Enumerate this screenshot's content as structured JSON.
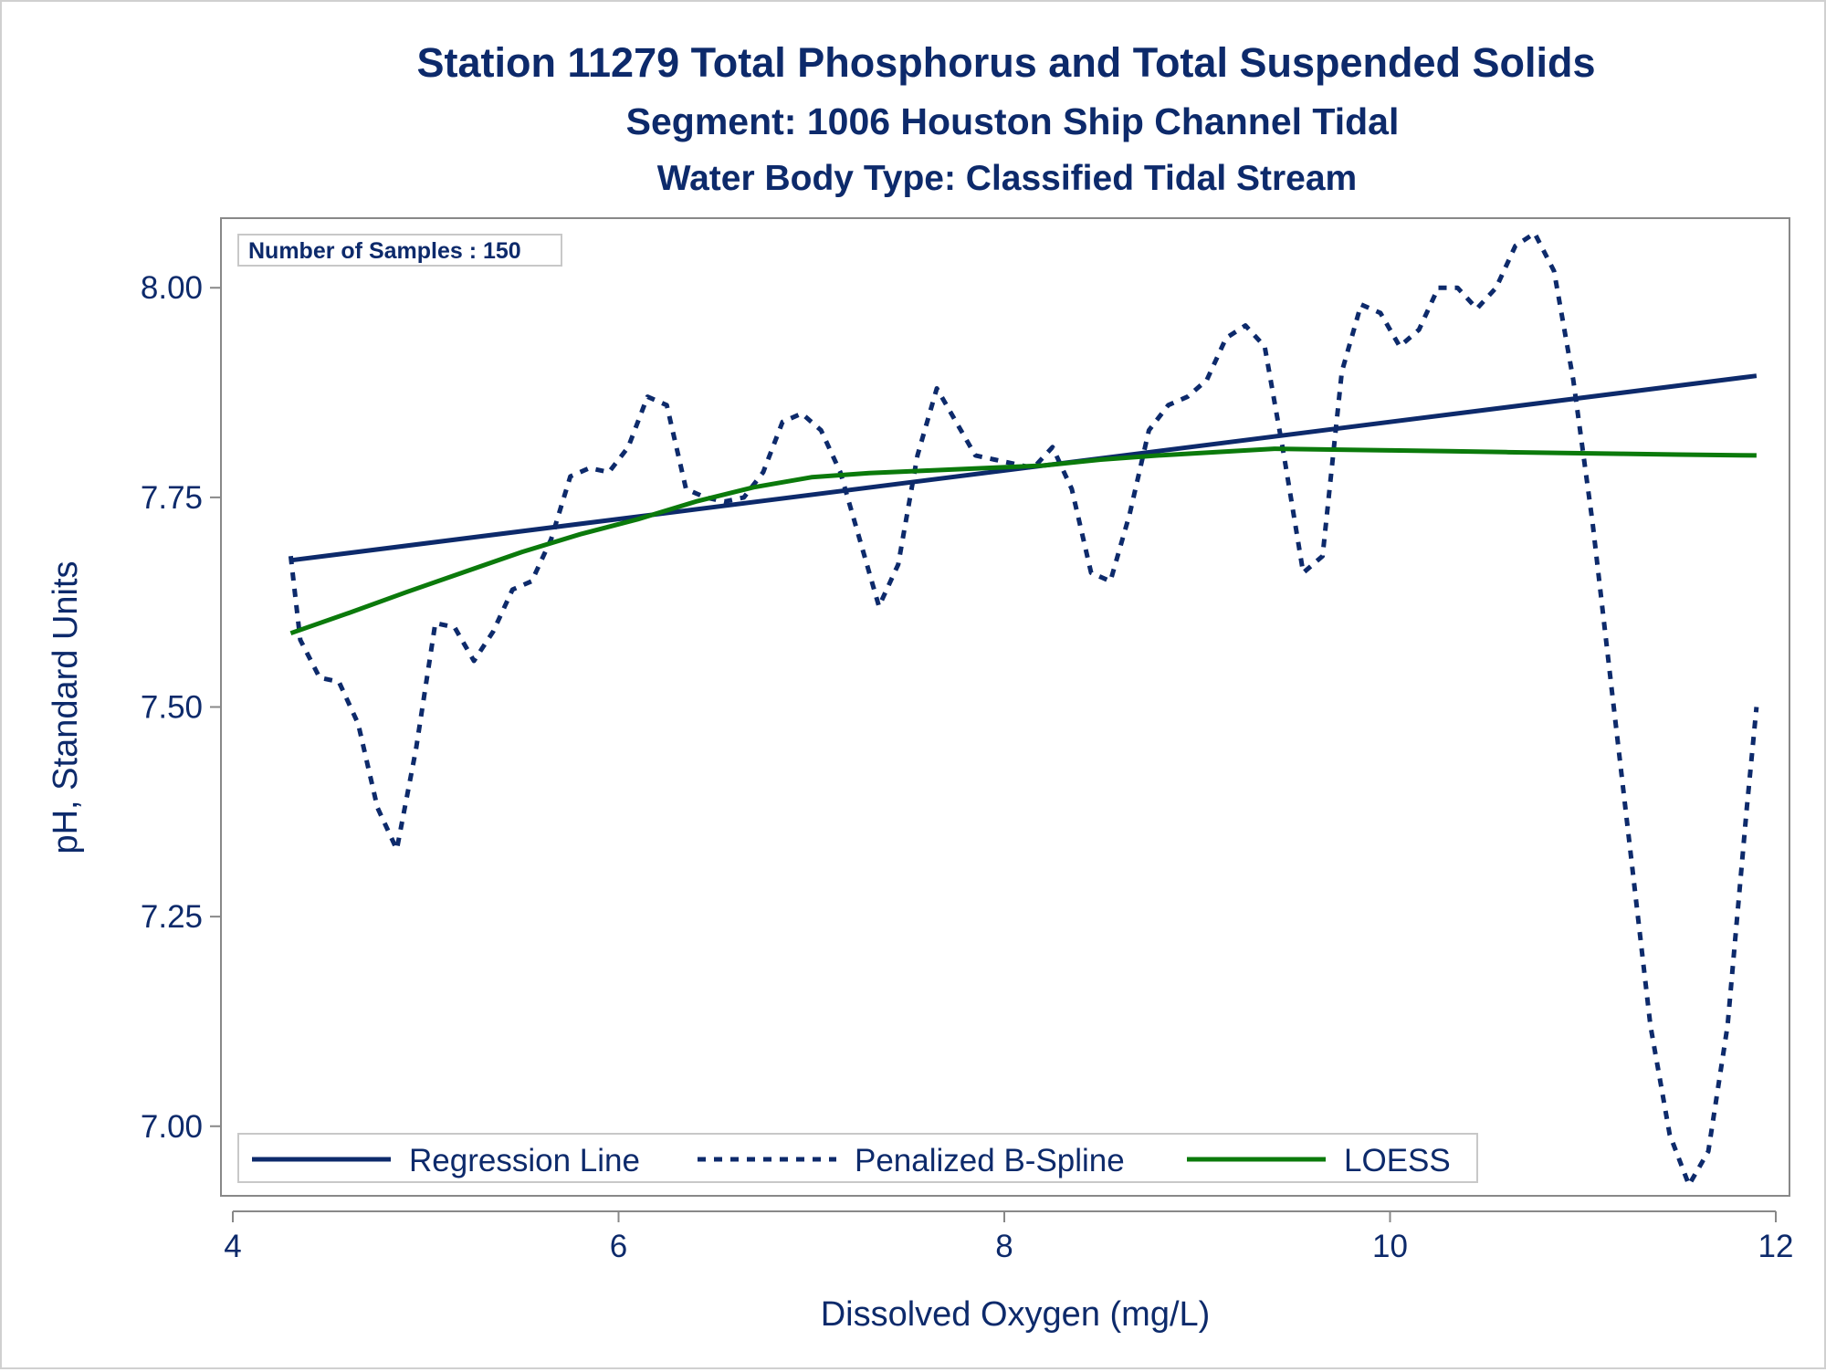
{
  "chart_data": {
    "type": "line",
    "title": "Station 11279  Total Phosphorus and Total Suspended Solids",
    "subtitle": "Segment: 1006  Houston Ship Channel Tidal",
    "subtitle2": "Water Body Type: Classified Tidal Stream",
    "xlabel": "Dissolved Oxygen (mg/L)",
    "ylabel": "pH, Standard Units",
    "xlim": [
      4,
      12
    ],
    "ylim": [
      6.917,
      8.083
    ],
    "x_ticks": [
      4,
      6,
      8,
      10,
      12
    ],
    "x_tick_labels": [
      "4",
      "6",
      "8",
      "10",
      "12"
    ],
    "y_ticks": [
      7.0,
      7.25,
      7.5,
      7.75,
      8.0
    ],
    "y_tick_labels": [
      "7.00",
      "7.25",
      "7.50",
      "7.75",
      "8.00"
    ],
    "grid": false,
    "legend_position": "bottom-inside",
    "inset_label": "Number of Samples : 150",
    "colors": {
      "text": "#0d2a6b",
      "regression": "#0d2a6b",
      "spline": "#0d2a6b",
      "loess": "#0b7a0b",
      "axis": "#888888"
    },
    "series": [
      {
        "name": "Regression Line",
        "style": "solid",
        "color": "#0d2a6b",
        "x": [
          4.3,
          11.9
        ],
        "y": [
          7.675,
          7.895
        ]
      },
      {
        "name": "Penalized B-Spline",
        "style": "dashed",
        "color": "#0d2a6b",
        "x": [
          4.3,
          4.35,
          4.45,
          4.55,
          4.65,
          4.75,
          4.85,
          4.95,
          5.05,
          5.15,
          5.25,
          5.35,
          5.45,
          5.55,
          5.65,
          5.75,
          5.85,
          5.95,
          6.05,
          6.15,
          6.25,
          6.35,
          6.45,
          6.55,
          6.65,
          6.75,
          6.85,
          6.95,
          7.05,
          7.15,
          7.25,
          7.35,
          7.45,
          7.55,
          7.65,
          7.75,
          7.85,
          7.95,
          8.05,
          8.15,
          8.25,
          8.35,
          8.45,
          8.55,
          8.65,
          8.75,
          8.85,
          8.95,
          9.05,
          9.15,
          9.25,
          9.35,
          9.45,
          9.55,
          9.65,
          9.75,
          9.85,
          9.95,
          10.05,
          10.15,
          10.25,
          10.35,
          10.45,
          10.55,
          10.65,
          10.75,
          10.85,
          10.95,
          11.05,
          11.15,
          11.25,
          11.35,
          11.45,
          11.55,
          11.65,
          11.75,
          11.85,
          11.9
        ],
        "y": [
          7.68,
          7.58,
          7.535,
          7.53,
          7.48,
          7.38,
          7.33,
          7.45,
          7.6,
          7.595,
          7.555,
          7.59,
          7.64,
          7.65,
          7.7,
          7.775,
          7.785,
          7.78,
          7.81,
          7.87,
          7.86,
          7.76,
          7.75,
          7.745,
          7.75,
          7.78,
          7.84,
          7.85,
          7.83,
          7.78,
          7.7,
          7.62,
          7.67,
          7.8,
          7.88,
          7.84,
          7.8,
          7.795,
          7.79,
          7.785,
          7.81,
          7.76,
          7.66,
          7.65,
          7.73,
          7.83,
          7.86,
          7.87,
          7.89,
          7.94,
          7.955,
          7.93,
          7.8,
          7.66,
          7.68,
          7.9,
          7.98,
          7.97,
          7.93,
          7.95,
          8.0,
          8.0,
          7.975,
          8.0,
          8.05,
          8.065,
          8.02,
          7.89,
          7.72,
          7.52,
          7.32,
          7.12,
          6.99,
          6.93,
          6.97,
          7.12,
          7.38,
          7.5
        ]
      },
      {
        "name": "LOESS",
        "style": "solid",
        "color": "#0b7a0b",
        "x": [
          4.3,
          4.6,
          4.9,
          5.2,
          5.5,
          5.8,
          6.1,
          6.4,
          6.7,
          7.0,
          7.3,
          7.6,
          7.9,
          8.2,
          8.5,
          8.8,
          9.1,
          9.4,
          9.7,
          10.0,
          10.3,
          10.6,
          10.9,
          11.2,
          11.5,
          11.9
        ],
        "y": [
          7.588,
          7.612,
          7.637,
          7.661,
          7.685,
          7.706,
          7.724,
          7.745,
          7.762,
          7.774,
          7.779,
          7.782,
          7.785,
          7.788,
          7.795,
          7.8,
          7.804,
          7.808,
          7.807,
          7.806,
          7.805,
          7.804,
          7.803,
          7.802,
          7.801,
          7.8
        ]
      }
    ]
  }
}
